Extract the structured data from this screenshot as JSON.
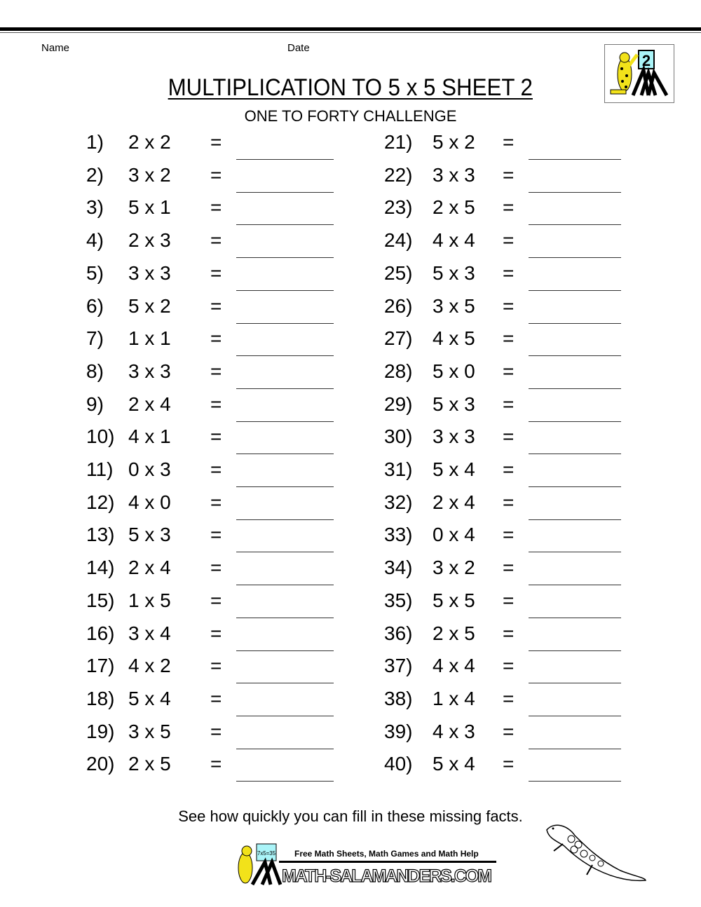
{
  "header": {
    "name_label": "Name",
    "date_label": "Date",
    "logo_number": "2"
  },
  "title": "MULTIPLICATION TO 5 x 5 SHEET 2",
  "subtitle": "ONE TO FORTY CHALLENGE",
  "equals": "=",
  "questions": [
    {
      "num": "1)",
      "expr": "2 x 2"
    },
    {
      "num": "2)",
      "expr": "3 x 2"
    },
    {
      "num": "3)",
      "expr": "5 x 1"
    },
    {
      "num": "4)",
      "expr": "2 x 3"
    },
    {
      "num": "5)",
      "expr": "3 x 3"
    },
    {
      "num": "6)",
      "expr": "5 x 2"
    },
    {
      "num": "7)",
      "expr": "1 x 1"
    },
    {
      "num": "8)",
      "expr": "3 x 3"
    },
    {
      "num": "9)",
      "expr": "2 x 4"
    },
    {
      "num": "10)",
      "expr": "4 x 1"
    },
    {
      "num": "11)",
      "expr": "0 x 3"
    },
    {
      "num": "12)",
      "expr": "4 x 0"
    },
    {
      "num": "13)",
      "expr": "5 x 3"
    },
    {
      "num": "14)",
      "expr": "2 x 4"
    },
    {
      "num": "15)",
      "expr": "1 x 5"
    },
    {
      "num": "16)",
      "expr": "3 x 4"
    },
    {
      "num": "17)",
      "expr": "4 x 2"
    },
    {
      "num": "18)",
      "expr": "5 x 4"
    },
    {
      "num": "19)",
      "expr": "3 x 5"
    },
    {
      "num": "20)",
      "expr": "2 x 5"
    },
    {
      "num": "21)",
      "expr": "5 x 2"
    },
    {
      "num": "22)",
      "expr": "3 x 3"
    },
    {
      "num": "23)",
      "expr": "2 x 5"
    },
    {
      "num": "24)",
      "expr": "4 x 4"
    },
    {
      "num": "25)",
      "expr": "5 x 3"
    },
    {
      "num": "26)",
      "expr": "3 x 5"
    },
    {
      "num": "27)",
      "expr": "4 x 5"
    },
    {
      "num": "28)",
      "expr": "5 x 0"
    },
    {
      "num": "29)",
      "expr": "5 x 3"
    },
    {
      "num": "30)",
      "expr": "3 x 3"
    },
    {
      "num": "31)",
      "expr": "5 x 4"
    },
    {
      "num": "32)",
      "expr": "2 x 4"
    },
    {
      "num": "33)",
      "expr": "0 x 4"
    },
    {
      "num": "34)",
      "expr": "3 x 2"
    },
    {
      "num": "35)",
      "expr": "5 x 5"
    },
    {
      "num": "36)",
      "expr": "2 x 5"
    },
    {
      "num": "37)",
      "expr": "4 x 4"
    },
    {
      "num": "38)",
      "expr": "1 x 4"
    },
    {
      "num": "39)",
      "expr": "4 x 3"
    },
    {
      "num": "40)",
      "expr": "5 x 4"
    }
  ],
  "footer": {
    "instruction": "See how quickly you can fill in these missing facts.",
    "tagline": "Free Math Sheets, Math Games and Math Help",
    "brand": "MATH-SALAMANDERS.COM",
    "board_text": "7x5=35"
  },
  "colors": {
    "logo_yellow": "#f2e21a",
    "board_cyan": "#aaf4f8"
  }
}
